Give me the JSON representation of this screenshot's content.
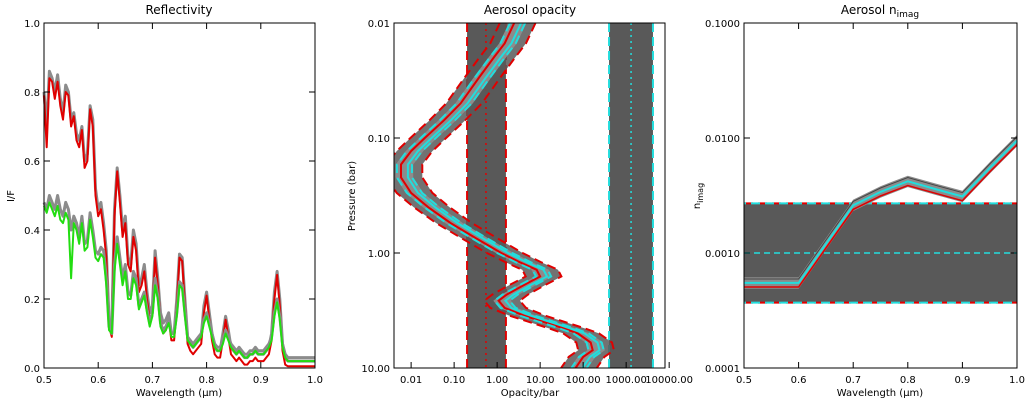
{
  "colors": {
    "red": "#e00000",
    "green": "#22dd11",
    "grey": "#8c8c8c",
    "dark": "#595959",
    "cyan": "#22dddd"
  },
  "chart_data": [
    {
      "id": "reflectivity",
      "type": "line",
      "title": "Reflectivity",
      "xlabel_pre": "Wavelength (",
      "xlabel_sym": "μm",
      "xlabel_post": ")",
      "ylabel": "I/F",
      "xlim": [
        0.5,
        1.0
      ],
      "ylim": [
        0.0,
        1.0
      ],
      "xticks": [
        "0.5",
        "0.6",
        "0.7",
        "0.8",
        "0.9",
        "1.0"
      ],
      "yticks": [
        "0.0",
        "0.2",
        "0.4",
        "0.6",
        "0.8",
        "1.0"
      ],
      "x": [
        0.5,
        0.505,
        0.51,
        0.515,
        0.52,
        0.525,
        0.53,
        0.535,
        0.54,
        0.545,
        0.55,
        0.555,
        0.56,
        0.565,
        0.57,
        0.575,
        0.58,
        0.585,
        0.59,
        0.595,
        0.6,
        0.605,
        0.61,
        0.615,
        0.62,
        0.625,
        0.63,
        0.635,
        0.64,
        0.645,
        0.65,
        0.655,
        0.66,
        0.665,
        0.67,
        0.675,
        0.68,
        0.685,
        0.69,
        0.695,
        0.7,
        0.705,
        0.71,
        0.715,
        0.72,
        0.725,
        0.73,
        0.735,
        0.74,
        0.745,
        0.75,
        0.755,
        0.76,
        0.765,
        0.77,
        0.775,
        0.78,
        0.785,
        0.79,
        0.795,
        0.8,
        0.805,
        0.81,
        0.815,
        0.82,
        0.825,
        0.83,
        0.835,
        0.84,
        0.845,
        0.85,
        0.855,
        0.86,
        0.865,
        0.87,
        0.875,
        0.88,
        0.885,
        0.89,
        0.895,
        0.9,
        0.905,
        0.91,
        0.915,
        0.92,
        0.925,
        0.93,
        0.935,
        0.94,
        0.945,
        0.95,
        0.955,
        0.96,
        0.965,
        0.97,
        0.975,
        0.98,
        0.985,
        0.99,
        0.995,
        1.0
      ],
      "series": [
        {
          "color": "grey",
          "width": 3,
          "values": [
            0.8,
            0.7,
            0.86,
            0.84,
            0.8,
            0.85,
            0.78,
            0.74,
            0.82,
            0.8,
            0.72,
            0.74,
            0.68,
            0.66,
            0.7,
            0.6,
            0.62,
            0.76,
            0.72,
            0.52,
            0.46,
            0.48,
            0.42,
            0.34,
            0.14,
            0.12,
            0.46,
            0.58,
            0.5,
            0.4,
            0.44,
            0.32,
            0.3,
            0.4,
            0.36,
            0.24,
            0.26,
            0.3,
            0.22,
            0.16,
            0.18,
            0.34,
            0.26,
            0.16,
            0.13,
            0.14,
            0.16,
            0.1,
            0.1,
            0.2,
            0.33,
            0.32,
            0.2,
            0.09,
            0.07,
            0.06,
            0.07,
            0.08,
            0.09,
            0.18,
            0.22,
            0.16,
            0.1,
            0.06,
            0.05,
            0.05,
            0.1,
            0.15,
            0.11,
            0.06,
            0.05,
            0.04,
            0.05,
            0.04,
            0.03,
            0.03,
            0.04,
            0.04,
            0.05,
            0.04,
            0.04,
            0.04,
            0.05,
            0.06,
            0.1,
            0.22,
            0.28,
            0.2,
            0.07,
            0.03,
            0.02,
            0.02,
            0.02,
            0.02,
            0.02,
            0.02,
            0.02,
            0.02,
            0.02,
            0.02,
            0.02
          ]
        },
        {
          "color": "red",
          "width": 2,
          "values": [
            0.79,
            0.64,
            0.84,
            0.83,
            0.78,
            0.83,
            0.76,
            0.72,
            0.8,
            0.79,
            0.7,
            0.73,
            0.66,
            0.64,
            0.69,
            0.58,
            0.6,
            0.75,
            0.7,
            0.5,
            0.44,
            0.46,
            0.4,
            0.32,
            0.12,
            0.09,
            0.44,
            0.57,
            0.48,
            0.38,
            0.42,
            0.3,
            0.28,
            0.38,
            0.34,
            0.22,
            0.24,
            0.28,
            0.2,
            0.14,
            0.16,
            0.32,
            0.24,
            0.14,
            0.1,
            0.11,
            0.14,
            0.08,
            0.08,
            0.18,
            0.32,
            0.31,
            0.18,
            0.07,
            0.05,
            0.04,
            0.05,
            0.06,
            0.07,
            0.16,
            0.21,
            0.14,
            0.08,
            0.04,
            0.03,
            0.03,
            0.08,
            0.14,
            0.09,
            0.04,
            0.03,
            0.02,
            0.03,
            0.02,
            0.01,
            0.01,
            0.02,
            0.02,
            0.03,
            0.02,
            0.02,
            0.02,
            0.03,
            0.04,
            0.08,
            0.2,
            0.27,
            0.18,
            0.05,
            0.01,
            0.005,
            0.005,
            0.005,
            0.005,
            0.005,
            0.005,
            0.005,
            0.005,
            0.005,
            0.005,
            0.005
          ]
        },
        {
          "color": "grey",
          "width": 3,
          "values": [
            0.48,
            0.46,
            0.5,
            0.48,
            0.46,
            0.5,
            0.46,
            0.44,
            0.48,
            0.46,
            0.4,
            0.44,
            0.42,
            0.38,
            0.44,
            0.36,
            0.37,
            0.45,
            0.4,
            0.34,
            0.33,
            0.35,
            0.34,
            0.26,
            0.12,
            0.1,
            0.3,
            0.38,
            0.32,
            0.26,
            0.3,
            0.22,
            0.21,
            0.28,
            0.26,
            0.18,
            0.2,
            0.22,
            0.17,
            0.13,
            0.16,
            0.26,
            0.21,
            0.13,
            0.11,
            0.12,
            0.14,
            0.1,
            0.1,
            0.16,
            0.25,
            0.24,
            0.16,
            0.09,
            0.08,
            0.07,
            0.08,
            0.09,
            0.1,
            0.14,
            0.16,
            0.13,
            0.1,
            0.07,
            0.06,
            0.06,
            0.08,
            0.11,
            0.09,
            0.07,
            0.06,
            0.05,
            0.06,
            0.05,
            0.04,
            0.04,
            0.05,
            0.05,
            0.06,
            0.05,
            0.05,
            0.05,
            0.06,
            0.07,
            0.09,
            0.16,
            0.2,
            0.15,
            0.07,
            0.04,
            0.03,
            0.03,
            0.03,
            0.03,
            0.03,
            0.03,
            0.03,
            0.03,
            0.03,
            0.03,
            0.03
          ]
        },
        {
          "color": "green",
          "width": 2,
          "values": [
            0.47,
            0.45,
            0.48,
            0.46,
            0.44,
            0.47,
            0.43,
            0.42,
            0.45,
            0.43,
            0.26,
            0.42,
            0.4,
            0.36,
            0.42,
            0.34,
            0.35,
            0.43,
            0.38,
            0.32,
            0.31,
            0.33,
            0.32,
            0.24,
            0.11,
            0.1,
            0.28,
            0.36,
            0.3,
            0.24,
            0.28,
            0.2,
            0.2,
            0.26,
            0.24,
            0.17,
            0.19,
            0.21,
            0.16,
            0.12,
            0.15,
            0.24,
            0.2,
            0.12,
            0.1,
            0.11,
            0.13,
            0.09,
            0.09,
            0.15,
            0.24,
            0.23,
            0.15,
            0.08,
            0.07,
            0.06,
            0.07,
            0.08,
            0.09,
            0.13,
            0.15,
            0.12,
            0.09,
            0.06,
            0.05,
            0.05,
            0.07,
            0.1,
            0.08,
            0.06,
            0.05,
            0.04,
            0.05,
            0.04,
            0.03,
            0.03,
            0.04,
            0.04,
            0.05,
            0.04,
            0.04,
            0.04,
            0.05,
            0.06,
            0.08,
            0.15,
            0.19,
            0.14,
            0.06,
            0.03,
            0.02,
            0.02,
            0.02,
            0.02,
            0.02,
            0.02,
            0.02,
            0.02,
            0.02,
            0.02,
            0.02
          ]
        }
      ]
    },
    {
      "id": "opacity",
      "type": "line",
      "title": "Aerosol opacity",
      "xlabel": "Opacity/bar",
      "ylabel": "Pressure (bar)",
      "xscale": "log",
      "yscale": "log",
      "yreversed": true,
      "xlim": [
        0.004,
        8000
      ],
      "ylim": [
        0.01,
        10
      ],
      "xticks": [
        {
          "v": 0.01,
          "t": "0.01"
        },
        {
          "v": 0.1,
          "t": "0.10"
        },
        {
          "v": 1,
          "t": "1.00"
        },
        {
          "v": 10,
          "t": "10.00"
        },
        {
          "v": 100,
          "t": "100.00"
        },
        {
          "v": 1000,
          "t": "1000.00"
        },
        {
          "v": 10000,
          "t": "10000.00"
        }
      ],
      "yticks": [
        {
          "v": 0.01,
          "t": "0.01"
        },
        {
          "v": 0.1,
          "t": "0.10"
        },
        {
          "v": 1,
          "t": "1.00"
        },
        {
          "v": 10,
          "t": "10.00"
        }
      ],
      "columns": [
        {
          "xmin": 0.2,
          "xmax": 1.6,
          "center": 0.55,
          "edge_color": "red",
          "center_color": "red"
        },
        {
          "xmin": 400,
          "xmax": 4200,
          "center": 1300,
          "edge_color": "cyan",
          "center_color": "cyan"
        }
      ],
      "band_profile": {
        "p": [
          0.01,
          0.015,
          0.02,
          0.03,
          0.05,
          0.07,
          0.1,
          0.13,
          0.17,
          0.22,
          0.3,
          0.4,
          0.55,
          0.75,
          1.0,
          1.2,
          1.4,
          1.6,
          1.9,
          2.3,
          2.6,
          3.0,
          3.5,
          4.0,
          4.5,
          5.0,
          6.0,
          7.0,
          8.0,
          10.0
        ],
        "x": [
          3.0,
          1.8,
          1.0,
          0.45,
          0.17,
          0.07,
          0.025,
          0.012,
          0.007,
          0.007,
          0.012,
          0.03,
          0.1,
          0.4,
          1.5,
          4.0,
          10.0,
          12.0,
          5.0,
          2.0,
          1.3,
          1.8,
          5.0,
          15.0,
          40.0,
          90.0,
          180.0,
          200.0,
          120.0,
          80.0
        ]
      },
      "band_factor": 2.6,
      "line_factor": 1.2
    },
    {
      "id": "nimag",
      "type": "line",
      "title_pre": "Aerosol n",
      "title_sub": "imag",
      "xlabel_pre": "Wavelength (",
      "xlabel_sym": "μm",
      "xlabel_post": ")",
      "ylabel_pre": "n",
      "ylabel_sub": "imag",
      "yscale": "log",
      "xlim": [
        0.5,
        1.0
      ],
      "ylim": [
        0.0001,
        0.1
      ],
      "xticks": [
        "0.5",
        "0.6",
        "0.7",
        "0.8",
        "0.9",
        "1.0"
      ],
      "yticks": [
        {
          "v": 0.0001,
          "t": "0.0001"
        },
        {
          "v": 0.001,
          "t": "0.0010"
        },
        {
          "v": 0.01,
          "t": "0.0100"
        },
        {
          "v": 0.1,
          "t": "0.1000"
        }
      ],
      "band": {
        "ymin": 0.00037,
        "ymax": 0.0027,
        "center": 0.001
      },
      "x": [
        0.5,
        0.6,
        0.65,
        0.7,
        0.75,
        0.8,
        0.85,
        0.9,
        0.95,
        1.0
      ],
      "values": [
        0.00055,
        0.00055,
        0.0012,
        0.0026,
        0.0034,
        0.0042,
        0.0036,
        0.0031,
        0.0055,
        0.0095
      ]
    }
  ]
}
